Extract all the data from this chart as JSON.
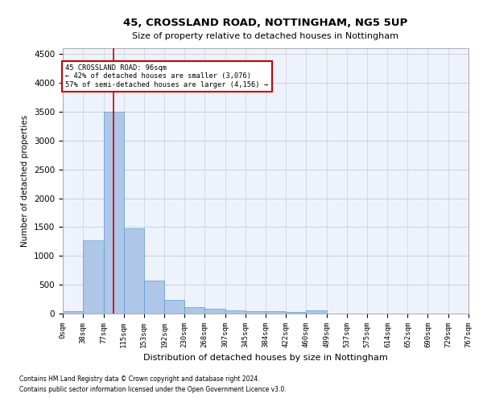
{
  "title1": "45, CROSSLAND ROAD, NOTTINGHAM, NG5 5UP",
  "title2": "Size of property relative to detached houses in Nottingham",
  "xlabel": "Distribution of detached houses by size in Nottingham",
  "ylabel": "Number of detached properties",
  "footer1": "Contains HM Land Registry data © Crown copyright and database right 2024.",
  "footer2": "Contains public sector information licensed under the Open Government Licence v3.0.",
  "annotation_title": "45 CROSSLAND ROAD: 96sqm",
  "annotation_line2": "← 42% of detached houses are smaller (3,076)",
  "annotation_line3": "57% of semi-detached houses are larger (4,156) →",
  "property_sqm": 96,
  "bin_edges": [
    0,
    38,
    77,
    115,
    153,
    192,
    230,
    268,
    307,
    345,
    384,
    422,
    460,
    499,
    537,
    575,
    614,
    652,
    690,
    729,
    767
  ],
  "bar_heights": [
    40,
    1270,
    3500,
    1480,
    570,
    240,
    115,
    80,
    55,
    40,
    35,
    30,
    55,
    0,
    0,
    0,
    0,
    0,
    0,
    0
  ],
  "bar_color": "#aec6e8",
  "bar_edge_color": "#5a9fd4",
  "vline_x": 96,
  "vline_color": "#cc0000",
  "annotation_box_color": "#cc0000",
  "background_color": "#eef2fa",
  "grid_color": "#c8d0e0",
  "ylim": [
    0,
    4600
  ],
  "yticks": [
    0,
    500,
    1000,
    1500,
    2000,
    2500,
    3000,
    3500,
    4000,
    4500
  ]
}
